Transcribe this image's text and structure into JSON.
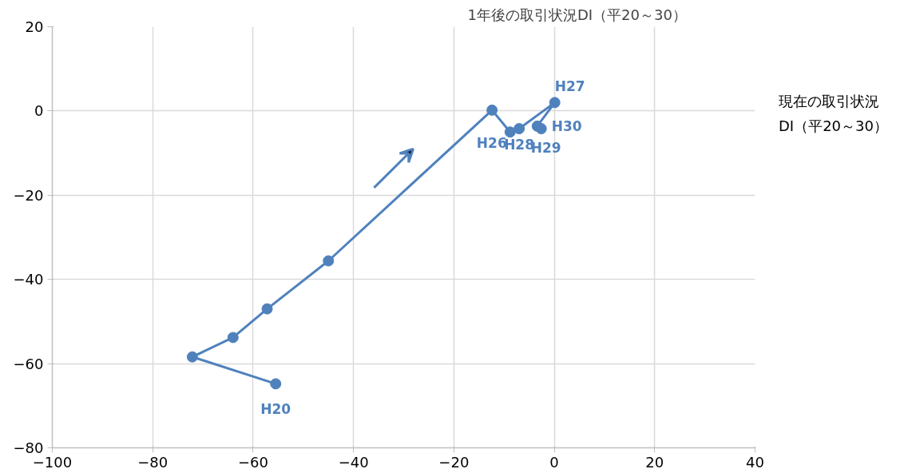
{
  "chart_data": {
    "type": "line",
    "xlabel": "現在の取引状況\nDI（平20～30）",
    "ylabel": "1年後の取引状況DI（平20～30）",
    "x": [
      -55.5,
      -72.1,
      -64.0,
      -57.2,
      -45.0,
      -12.4,
      -8.8,
      -7.0,
      0.1,
      -3.4,
      -2.6
    ],
    "series": [
      {
        "color": "#4f81bd",
        "values": [
          -64.8,
          -58.4,
          -53.8,
          -47.0,
          -35.6,
          0.2,
          -5.0,
          -4.2,
          2.0,
          -3.6,
          -4.2
        ]
      }
    ],
    "marker": "circle",
    "line_style": "solid",
    "annotations": [
      {
        "text": "H20",
        "x": -55.5,
        "y": -64.8
      },
      {
        "text": "H26",
        "x": -8.8,
        "y": -5.0
      },
      {
        "text": "H28",
        "x": -7.0,
        "y": -4.2
      },
      {
        "text": "H27",
        "x": 0.1,
        "y": 2.0
      },
      {
        "text": "H30",
        "x": -3.4,
        "y": -3.6
      },
      {
        "text": "H29",
        "x": -2.6,
        "y": -4.2
      }
    ],
    "xlim": [
      -100,
      40
    ],
    "xticks": [
      -100,
      -80,
      -60,
      -40,
      -20,
      0,
      20,
      40
    ],
    "ylim": [
      -80,
      20
    ],
    "yticks": [
      -80,
      -60,
      -40,
      -20,
      0,
      20
    ],
    "grid": true
  }
}
